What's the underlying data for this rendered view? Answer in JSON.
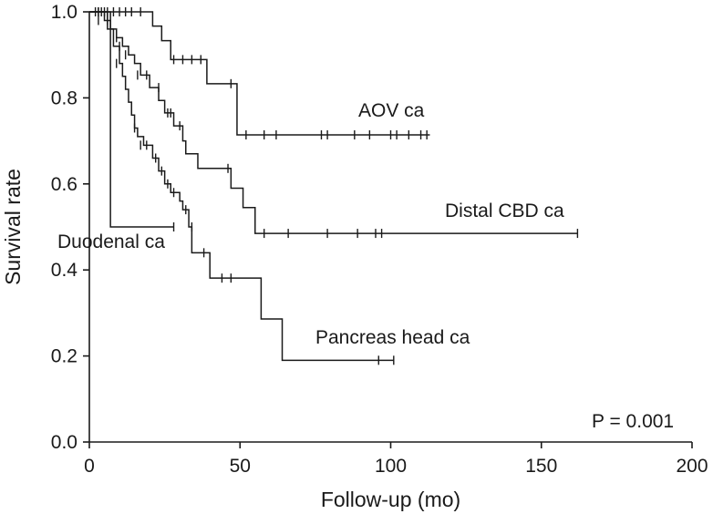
{
  "chart_data": {
    "type": "line",
    "subtype": "kaplan-meier-step",
    "title": "",
    "xlabel": "Follow-up (mo)",
    "ylabel": "Survival rate",
    "xlim": [
      0,
      200
    ],
    "ylim": [
      0,
      1.0
    ],
    "xticks": [
      "0",
      "50",
      "100",
      "150",
      "200"
    ],
    "yticks": [
      "0.0",
      "0.2",
      "0.4",
      "0.6",
      "0.8",
      "1.0"
    ],
    "grid": false,
    "legend": "none",
    "annotation": "P = 0.001",
    "series": [
      {
        "name": "AOV ca",
        "color": "#1a1a1a",
        "steps": [
          [
            0,
            1.0
          ],
          [
            21,
            0.967
          ],
          [
            24,
            0.933
          ],
          [
            27,
            0.889
          ],
          [
            39,
            0.833
          ],
          [
            49,
            0.714
          ],
          [
            113,
            0.714
          ]
        ],
        "censored": [
          [
            2,
            1.0
          ],
          [
            4,
            1.0
          ],
          [
            6,
            1.0
          ],
          [
            8,
            1.0
          ],
          [
            10,
            1.0
          ],
          [
            12,
            1.0
          ],
          [
            14,
            1.0
          ],
          [
            17,
            1.0
          ],
          [
            28,
            0.889
          ],
          [
            31,
            0.889
          ],
          [
            34,
            0.889
          ],
          [
            37,
            0.889
          ],
          [
            47,
            0.833
          ],
          [
            52,
            0.714
          ],
          [
            58,
            0.714
          ],
          [
            62,
            0.714
          ],
          [
            77,
            0.714
          ],
          [
            79,
            0.714
          ],
          [
            88,
            0.714
          ],
          [
            93,
            0.714
          ],
          [
            100,
            0.714
          ],
          [
            102,
            0.714
          ],
          [
            106,
            0.714
          ],
          [
            110,
            0.714
          ],
          [
            112,
            0.714
          ]
        ]
      },
      {
        "name": "Distal CBD ca",
        "color": "#1a1a1a",
        "steps": [
          [
            0,
            1.0
          ],
          [
            5,
            0.98
          ],
          [
            7,
            0.96
          ],
          [
            9,
            0.94
          ],
          [
            11,
            0.92
          ],
          [
            13,
            0.9
          ],
          [
            15,
            0.88
          ],
          [
            17,
            0.853
          ],
          [
            20,
            0.824
          ],
          [
            23,
            0.794
          ],
          [
            25,
            0.765
          ],
          [
            28,
            0.735
          ],
          [
            31,
            0.7
          ],
          [
            32,
            0.67
          ],
          [
            36,
            0.636
          ],
          [
            42,
            0.636
          ],
          [
            47,
            0.59
          ],
          [
            51,
            0.545
          ],
          [
            55,
            0.485
          ],
          [
            162,
            0.485
          ]
        ],
        "censored": [
          [
            3,
            1.0
          ],
          [
            6,
            0.98
          ],
          [
            9,
            0.94
          ],
          [
            10,
            0.92
          ],
          [
            12,
            0.9
          ],
          [
            16,
            0.853
          ],
          [
            19,
            0.853
          ],
          [
            23,
            0.824
          ],
          [
            26,
            0.765
          ],
          [
            27,
            0.765
          ],
          [
            30,
            0.735
          ],
          [
            46,
            0.636
          ],
          [
            58,
            0.485
          ],
          [
            66,
            0.485
          ],
          [
            79,
            0.485
          ],
          [
            89,
            0.485
          ],
          [
            95,
            0.485
          ],
          [
            97,
            0.485
          ],
          [
            162,
            0.485
          ]
        ]
      },
      {
        "name": "Pancreas head ca",
        "color": "#1a1a1a",
        "steps": [
          [
            0,
            1.0
          ],
          [
            6,
            0.96
          ],
          [
            8,
            0.92
          ],
          [
            10,
            0.88
          ],
          [
            11,
            0.85
          ],
          [
            12,
            0.82
          ],
          [
            13,
            0.79
          ],
          [
            14,
            0.76
          ],
          [
            15,
            0.73
          ],
          [
            16,
            0.71
          ],
          [
            18,
            0.69
          ],
          [
            21,
            0.66
          ],
          [
            23,
            0.63
          ],
          [
            25,
            0.6
          ],
          [
            27,
            0.58
          ],
          [
            30,
            0.56
          ],
          [
            31,
            0.54
          ],
          [
            33,
            0.5
          ],
          [
            34,
            0.44
          ],
          [
            40,
            0.381
          ],
          [
            57,
            0.381
          ],
          [
            57,
            0.286
          ],
          [
            64,
            0.19
          ],
          [
            101,
            0.19
          ]
        ],
        "censored": [
          [
            3,
            0.98
          ],
          [
            9,
            0.88
          ],
          [
            15,
            0.73
          ],
          [
            17,
            0.69
          ],
          [
            19,
            0.69
          ],
          [
            22,
            0.66
          ],
          [
            24,
            0.63
          ],
          [
            26,
            0.6
          ],
          [
            28,
            0.58
          ],
          [
            32,
            0.54
          ],
          [
            34,
            0.5
          ],
          [
            38,
            0.44
          ],
          [
            44,
            0.381
          ],
          [
            47,
            0.381
          ],
          [
            96,
            0.19
          ],
          [
            101,
            0.19
          ]
        ]
      },
      {
        "name": "Duodenal ca",
        "color": "#1a1a1a",
        "steps": [
          [
            0,
            1.0
          ],
          [
            7,
            1.0
          ],
          [
            7,
            0.5
          ],
          [
            28,
            0.5
          ]
        ],
        "censored": [
          [
            3,
            1.0
          ],
          [
            5,
            1.0
          ],
          [
            28,
            0.5
          ]
        ]
      }
    ]
  }
}
